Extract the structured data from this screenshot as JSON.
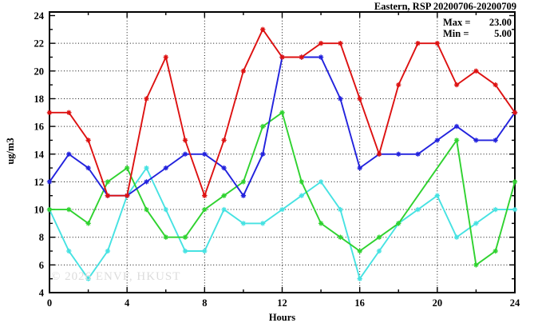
{
  "header": {
    "title": "Eastern, RSP 20200706-20200709"
  },
  "stats_box": {
    "max_label": "Max =",
    "max_value": "23.00",
    "min_label": "Min =",
    "min_value": "5.00"
  },
  "axes": {
    "ylabel": "ug/m3",
    "xlabel": "Hours"
  },
  "watermark": "© 2026 ENVF, HKUST",
  "chart_data": {
    "type": "line",
    "title": "Eastern, RSP 20200706-20200709",
    "xlabel": "Hours",
    "ylabel": "ug/m3",
    "xlim": [
      0,
      24
    ],
    "ylim": [
      4,
      24
    ],
    "x": [
      0,
      1,
      2,
      3,
      4,
      5,
      6,
      7,
      8,
      9,
      10,
      11,
      12,
      13,
      14,
      15,
      16,
      17,
      18,
      19,
      20,
      21,
      22,
      23,
      24
    ],
    "x_ticks_major": [
      0,
      4,
      8,
      12,
      16,
      20,
      24
    ],
    "x_ticks_minor": [
      2,
      6,
      10,
      14,
      18,
      22
    ],
    "y_ticks_major": [
      4,
      6,
      8,
      10,
      12,
      14,
      16,
      18,
      20,
      22,
      24
    ],
    "y_ticks_minor": [
      5,
      7,
      9,
      11,
      13,
      15,
      17,
      19,
      21,
      23
    ],
    "x_gridlines": [
      4,
      8,
      12,
      16,
      20
    ],
    "y_gridlines": [
      6,
      8,
      10,
      12,
      14,
      16,
      18,
      20,
      22
    ],
    "grid": "dotted-black-at-major-ticks",
    "legend_position": "none",
    "marker": "star",
    "annotations": {
      "max": 23.0,
      "min": 5.0
    },
    "series": [
      {
        "name": "series-1-red",
        "color": "#dd1111",
        "values": [
          17,
          17,
          15,
          11,
          11,
          18,
          21,
          15,
          11,
          15,
          20,
          23,
          21,
          21,
          22,
          22,
          18,
          14,
          19,
          22,
          22,
          19,
          20,
          19,
          17
        ]
      },
      {
        "name": "series-2-blue",
        "color": "#2222dd",
        "values": [
          12,
          14,
          13,
          11,
          11,
          12,
          13,
          14,
          14,
          13,
          11,
          14,
          21,
          21,
          21,
          18,
          13,
          14,
          14,
          14,
          15,
          16,
          15,
          15,
          17
        ]
      },
      {
        "name": "series-3-green",
        "color": "#2fd22f",
        "values": [
          10,
          10,
          9,
          12,
          13,
          10,
          8,
          8,
          10,
          11,
          12,
          16,
          17,
          12,
          9,
          8,
          7,
          8,
          9,
          null,
          null,
          15,
          6,
          7,
          12
        ]
      },
      {
        "name": "series-4-cyan",
        "color": "#46e2e2",
        "values": [
          10,
          7,
          5,
          7,
          11,
          13,
          10,
          7,
          7,
          10,
          9,
          9,
          10,
          11,
          12,
          10,
          5,
          7,
          9,
          10,
          11,
          8,
          9,
          10,
          10
        ]
      }
    ]
  }
}
